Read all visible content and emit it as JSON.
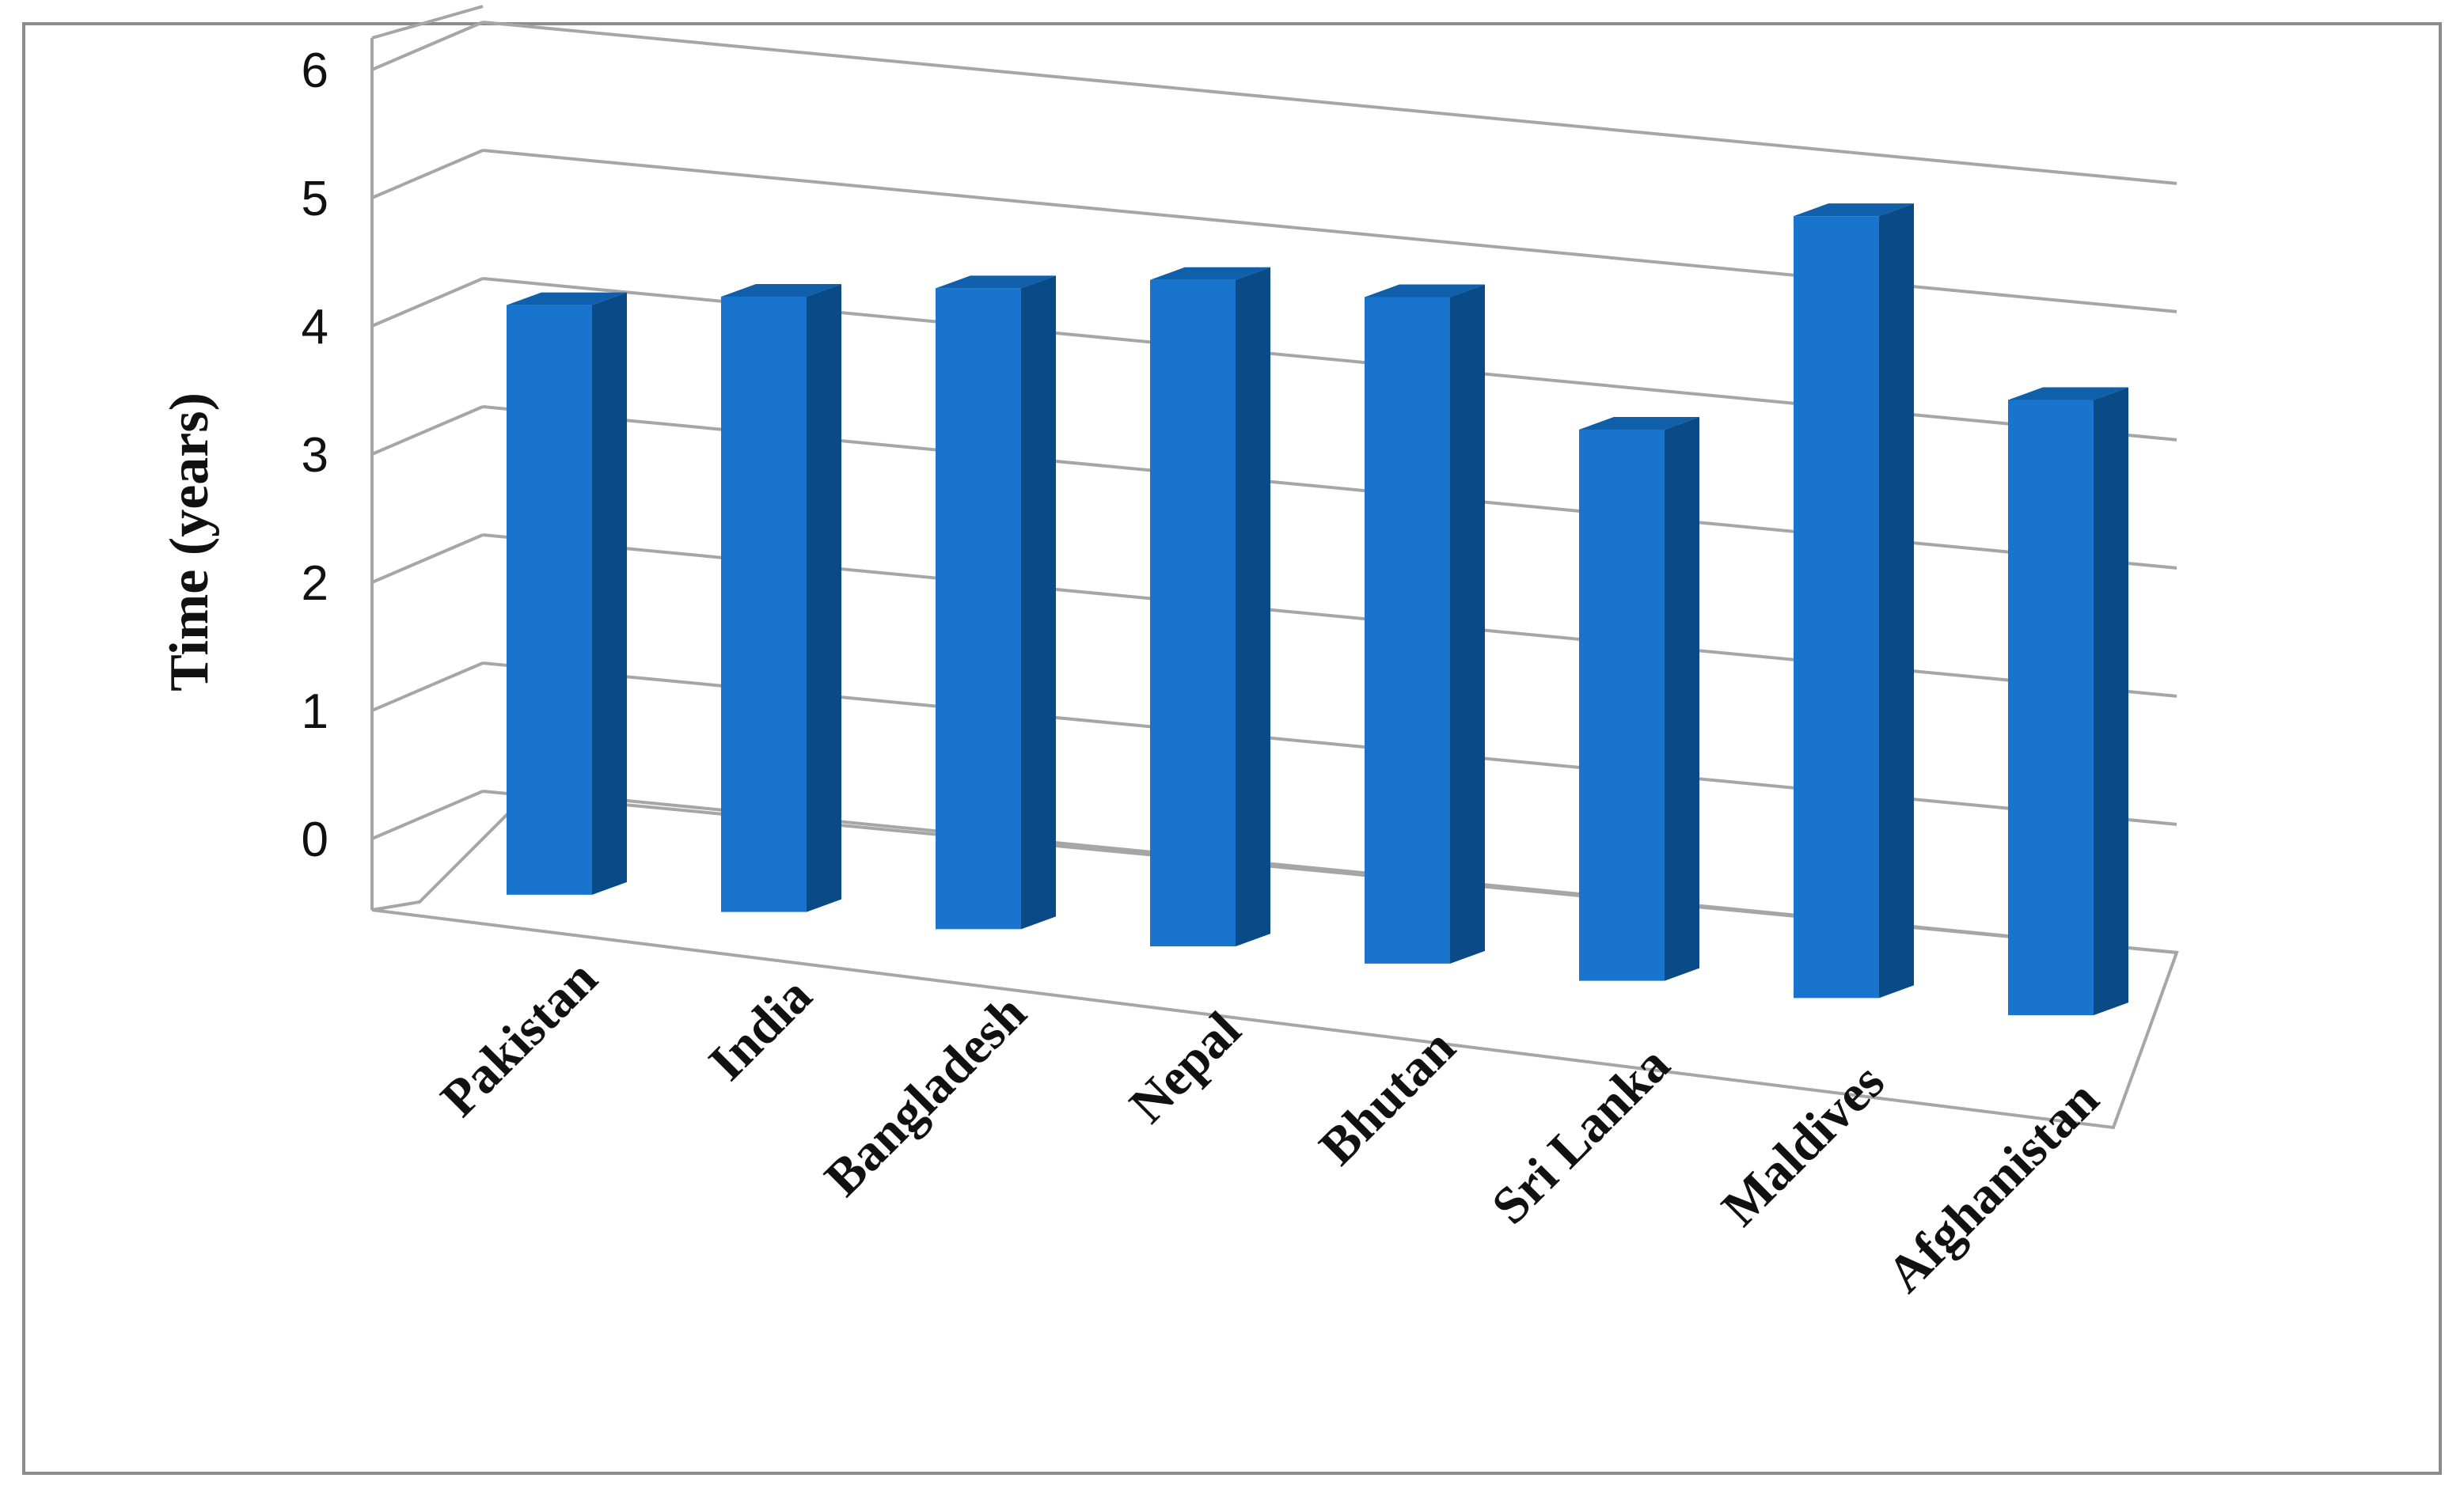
{
  "chart_data": {
    "type": "bar",
    "title": "",
    "xlabel": "",
    "ylabel": "Time (years)",
    "ylim": [
      0,
      6
    ],
    "yticks": [
      "0",
      "1",
      "2",
      "3",
      "4",
      "5",
      "6"
    ],
    "grid": true,
    "style": "3d-column",
    "bar_color": "#1874CD",
    "categories": [
      "Pakistan",
      "India",
      "Bangladesh",
      "Nepal",
      "Bhutan",
      "Sri Lanka",
      "Maldives",
      "Afghanistan"
    ],
    "values": [
      4.6,
      4.8,
      5.0,
      5.2,
      5.2,
      4.3,
      6.1,
      4.8
    ]
  }
}
